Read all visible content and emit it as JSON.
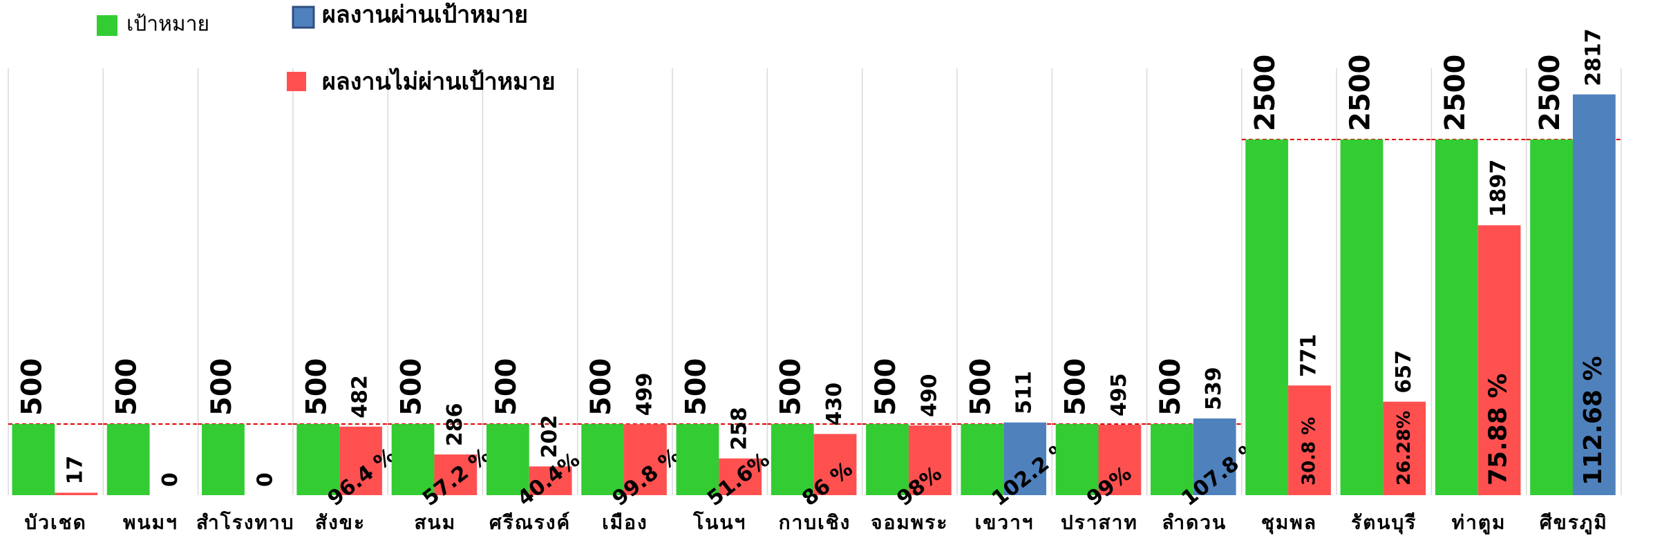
{
  "chart_data": {
    "type": "bar",
    "categories": [
      "บัวเชด",
      "พนมฯ",
      "สำโรงทาบ",
      "สังขะ",
      "สนม",
      "ศรีณรงค์",
      "เมือง",
      "โนนฯ",
      "กาบเชิง",
      "จอมพระ",
      "เขวาฯ",
      "ปราสาท",
      "ลำดวน",
      "ชุมพล",
      "รัตนบุรี",
      "ท่าตูม",
      "ศีขรภูมิ"
    ],
    "series": [
      {
        "name": "เป้าหมาย",
        "color": "#33cc33",
        "values": [
          500,
          500,
          500,
          500,
          500,
          500,
          500,
          500,
          500,
          500,
          500,
          500,
          500,
          2500,
          2500,
          2500,
          2500
        ]
      },
      {
        "name": "ผลงานผ่านเป้าหมาย",
        "color": "#4f81bd",
        "values": [
          null,
          null,
          null,
          null,
          null,
          null,
          null,
          null,
          null,
          null,
          511,
          null,
          539,
          null,
          null,
          null,
          2817
        ]
      },
      {
        "name": "ผลงานไม่ผ่านเป้าหมาย",
        "color": "#ff5050",
        "values": [
          17,
          0,
          0,
          482,
          286,
          202,
          499,
          258,
          430,
          490,
          null,
          495,
          null,
          771,
          657,
          1897,
          null
        ]
      }
    ],
    "percent_labels": [
      null,
      null,
      null,
      "96.4 %",
      "57.2 %",
      "40.4%",
      "99.8 %",
      "51.6%",
      "86 %",
      "98%",
      "102.2 %",
      "99%",
      "107.8 %",
      "30.8 %",
      "26.28%",
      "75.88 %",
      "112.68 %"
    ],
    "ylim": [
      0,
      3000
    ],
    "grid": true
  }
}
